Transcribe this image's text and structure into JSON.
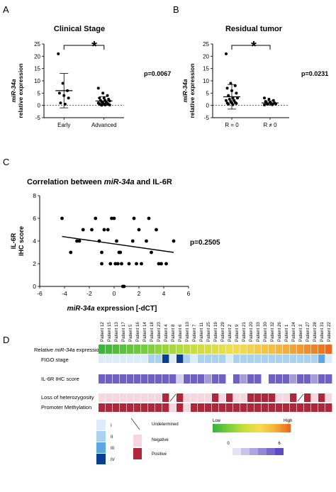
{
  "panels": {
    "a": {
      "letter": "A",
      "title": "Clinical Stage",
      "ylabel_line1": "miR-34a",
      "ylabel_line2": "relative expression",
      "pvalue": "p=0.0067",
      "significance": "*"
    },
    "b": {
      "letter": "B",
      "title": "Residual tumor",
      "ylabel_line1": "miR-34a",
      "ylabel_line2": "relative expression",
      "pvalue": "p=0.0231",
      "significance": "*"
    },
    "c": {
      "letter": "C",
      "title_prefix": "Correlation between ",
      "title_italic": "miR-34a",
      "title_suffix": " and IL-6R",
      "ylabel_line1": "IL-6R",
      "ylabel_line2": "IHC score",
      "xlabel_italic": "miR-34a",
      "xlabel_rest": " expression [-dCT]",
      "pvalue": "p=0.2505"
    },
    "d": {
      "letter": "D",
      "row_label_prefix": "Relative ",
      "row_label_italic": "miR-34a",
      "row_label_suffix": " expression",
      "row_labels": [
        "FIGO stage",
        "IL-6R IHC score",
        "Loss of heterozygosity",
        "Promoter Methylation"
      ],
      "patients": [
        "Patient 12",
        "Patient 15",
        "Patient 13",
        "Patient 17",
        "Patient 5",
        "Patient 16",
        "Patient 14",
        "Patient 18",
        "Patient 23",
        "Patient 4",
        "Patient 8",
        "Patient 6",
        "Patient 10",
        "Patient 7",
        "Patient 11",
        "Patient 25",
        "Patient 19",
        "Patient 29",
        "Patient 2",
        "Patient 9",
        "Patient 21",
        "Patient 20",
        "Patient 33",
        "Patient 30",
        "Patient 32",
        "Patient 26",
        "Patient 1",
        "Patient 24",
        "Patient 3",
        "Patient 27",
        "Patient 28",
        "Patient 31",
        "Patient 22"
      ],
      "figo": [
        1,
        1,
        1,
        1,
        1,
        1,
        1,
        2,
        2,
        4,
        1,
        4,
        2,
        1,
        2,
        2,
        2,
        2,
        1,
        2,
        2,
        2,
        2,
        2,
        2,
        2,
        2,
        2,
        2,
        2,
        2,
        3,
        1
      ],
      "il6r": [
        3,
        3,
        3,
        3,
        3,
        3,
        3,
        3,
        3,
        3,
        3,
        1,
        3,
        3,
        3,
        2,
        3,
        3,
        0,
        3,
        2,
        3,
        3,
        0,
        3,
        3,
        3,
        2,
        3,
        3,
        2,
        3,
        3
      ],
      "loh": [
        0,
        0,
        0,
        0,
        0,
        0,
        0,
        0,
        0,
        1,
        "u",
        1,
        0,
        0,
        0,
        0,
        1,
        0,
        1,
        0,
        0,
        1,
        1,
        1,
        1,
        0,
        0,
        1,
        "u",
        1,
        0,
        1,
        0
      ],
      "methylation": [
        1,
        1,
        1,
        1,
        1,
        1,
        1,
        1,
        1,
        1,
        0,
        1,
        0,
        1,
        1,
        1,
        1,
        1,
        1,
        1,
        1,
        1,
        1,
        1,
        1,
        1,
        1,
        1,
        1,
        1,
        1,
        1,
        1
      ],
      "legend": {
        "figo_levels": [
          "I",
          "II",
          "III",
          "IV"
        ],
        "undetermined": "Undetermined",
        "negative": "Negative",
        "positive": "Positive",
        "gradient_low": "Low",
        "gradient_high": "High",
        "ihc_min": "0",
        "ihc_max": "6"
      },
      "colors": {
        "figo": [
          "#dcecfa",
          "#a8d2f0",
          "#5aa8e2",
          "#0b3d91"
        ],
        "il6r": [
          "#ffffff",
          "#d6d0f0",
          "#a79ad8",
          "#6f60c6"
        ],
        "negative": "#f7d6e0",
        "positive": "#b0263a",
        "expr_gradient": [
          "#3cb43c",
          "#7ad03a",
          "#c9df3a",
          "#f6dc50",
          "#f5b33c",
          "#ee6a1a"
        ]
      }
    }
  },
  "chart_data": [
    {
      "type": "scatter",
      "title": "Clinical Stage",
      "categories": [
        "Early",
        "Advanced"
      ],
      "ylabel": "miR-34a relative expression",
      "ylim": [
        -5,
        25
      ],
      "yticks": [
        -5,
        0,
        5,
        10,
        15,
        20,
        25
      ],
      "series": [
        {
          "values": [
            21,
            9,
            6,
            5,
            4,
            3,
            1,
            0.5
          ],
          "mean": 6,
          "sd": 7
        },
        {
          "values": [
            7,
            5,
            4,
            3,
            3,
            2.5,
            2,
            2,
            1.8,
            1.5,
            1.2,
            1,
            1,
            0.8,
            0.6,
            0.5,
            0.4,
            0.3,
            0.2,
            0.2,
            0.1
          ],
          "mean": 1.8,
          "sd": 1.8
        }
      ]
    },
    {
      "type": "scatter",
      "title": "Residual tumor",
      "categories": [
        "R = 0",
        "R ≠ 0"
      ],
      "ylabel": "miR-34a relative expression",
      "ylim": [
        -5,
        25
      ],
      "yticks": [
        -5,
        0,
        5,
        10,
        15,
        20,
        25
      ],
      "series": [
        {
          "values": [
            21,
            9,
            8,
            7,
            6,
            5,
            4,
            3,
            3,
            2.5,
            2,
            2,
            1.5,
            1.2,
            1,
            1,
            0.8,
            0.5,
            0.3
          ],
          "mean": 3.5,
          "sd": 5
        },
        {
          "values": [
            3,
            2.5,
            2,
            1.6,
            1.2,
            1,
            0.9,
            0.8,
            0.6,
            0.5,
            0.3,
            0.2
          ],
          "mean": 1,
          "sd": 0.8
        }
      ]
    },
    {
      "type": "scatter",
      "title": "Correlation between miR-34a and IL-6R",
      "xlabel": "miR-34a expression [-dCT]",
      "ylabel": "IL-6R IHC score",
      "xlim": [
        -6,
        6
      ],
      "ylim": [
        0,
        8
      ],
      "xticks": [
        -6,
        -4,
        -2,
        0,
        2,
        4,
        6
      ],
      "yticks": [
        0,
        2,
        4,
        6,
        8
      ],
      "x": [
        -4.2,
        -3,
        -2.8,
        -2.5,
        -1.8,
        -1.5,
        -1.2,
        -1,
        -0.8,
        -0.5,
        -0.2,
        0,
        0.2,
        0.4,
        0.6,
        0.8,
        1.2,
        1.6,
        2,
        2.2,
        2.6,
        3,
        3.4,
        3.6,
        4.2,
        4.8,
        -3.5,
        -1,
        0.3,
        1.5,
        2.8,
        0.1,
        -0.3,
        0.7,
        1.8,
        3.8,
        0.5
      ],
      "y": [
        6,
        4,
        4,
        5,
        5,
        6,
        4,
        3,
        5,
        5,
        6,
        6,
        4,
        3,
        2,
        0,
        2,
        6,
        5,
        2,
        4,
        3,
        5,
        2,
        2,
        4,
        3,
        2,
        2,
        4,
        6,
        2,
        2,
        0,
        2,
        2,
        3
      ],
      "trendline": {
        "x": [
          -4.2,
          4.8
        ],
        "y": [
          4.4,
          3.0
        ]
      }
    }
  ]
}
